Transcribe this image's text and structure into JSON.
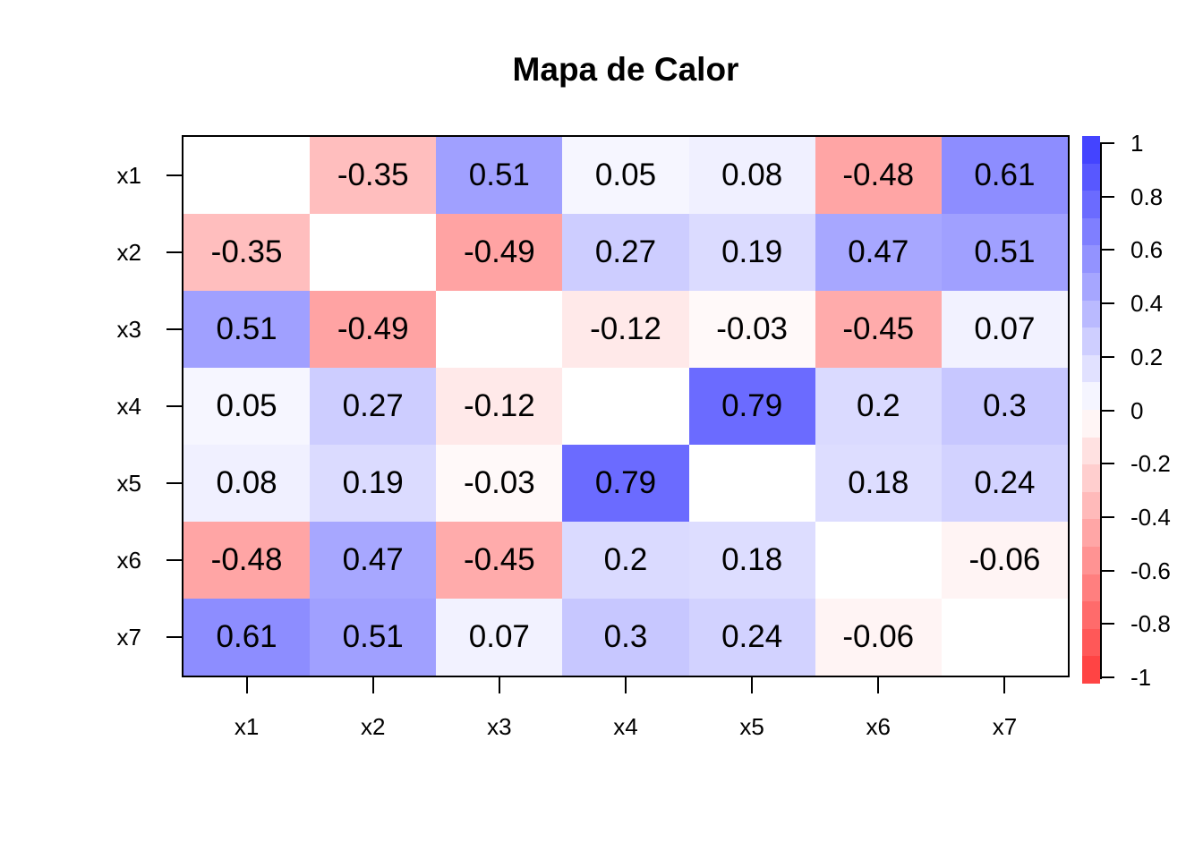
{
  "chart_data": {
    "type": "heatmap",
    "title": "Mapa de Calor",
    "x_categories": [
      "x1",
      "x2",
      "x3",
      "x4",
      "x5",
      "x6",
      "x7"
    ],
    "y_categories": [
      "x1",
      "x2",
      "x3",
      "x4",
      "x5",
      "x6",
      "x7"
    ],
    "matrix": [
      [
        null,
        -0.35,
        0.51,
        0.05,
        0.08,
        -0.48,
        0.61
      ],
      [
        -0.35,
        null,
        -0.49,
        0.27,
        0.19,
        0.47,
        0.51
      ],
      [
        0.51,
        -0.49,
        null,
        -0.12,
        -0.03,
        -0.45,
        0.07
      ],
      [
        0.05,
        0.27,
        -0.12,
        null,
        0.79,
        0.2,
        0.3
      ],
      [
        0.08,
        0.19,
        -0.03,
        0.79,
        null,
        0.18,
        0.24
      ],
      [
        -0.48,
        0.47,
        -0.45,
        0.2,
        0.18,
        null,
        -0.06
      ],
      [
        0.61,
        0.51,
        0.07,
        0.3,
        0.24,
        -0.06,
        null
      ]
    ],
    "diagonal": "blank",
    "value_text_color": "#000000",
    "grid": false,
    "colorbar": {
      "position": "right",
      "min": -1,
      "max": 1,
      "tick_labels": [
        "1",
        "0.8",
        "0.6",
        "0.4",
        "0.2",
        "0",
        "-0.2",
        "-0.4",
        "-0.6",
        "-0.8",
        "-1"
      ],
      "color_positive": "#4444FF",
      "color_zero": "#FFFFFF",
      "color_negative": "#FF4444",
      "steps": 20
    }
  }
}
